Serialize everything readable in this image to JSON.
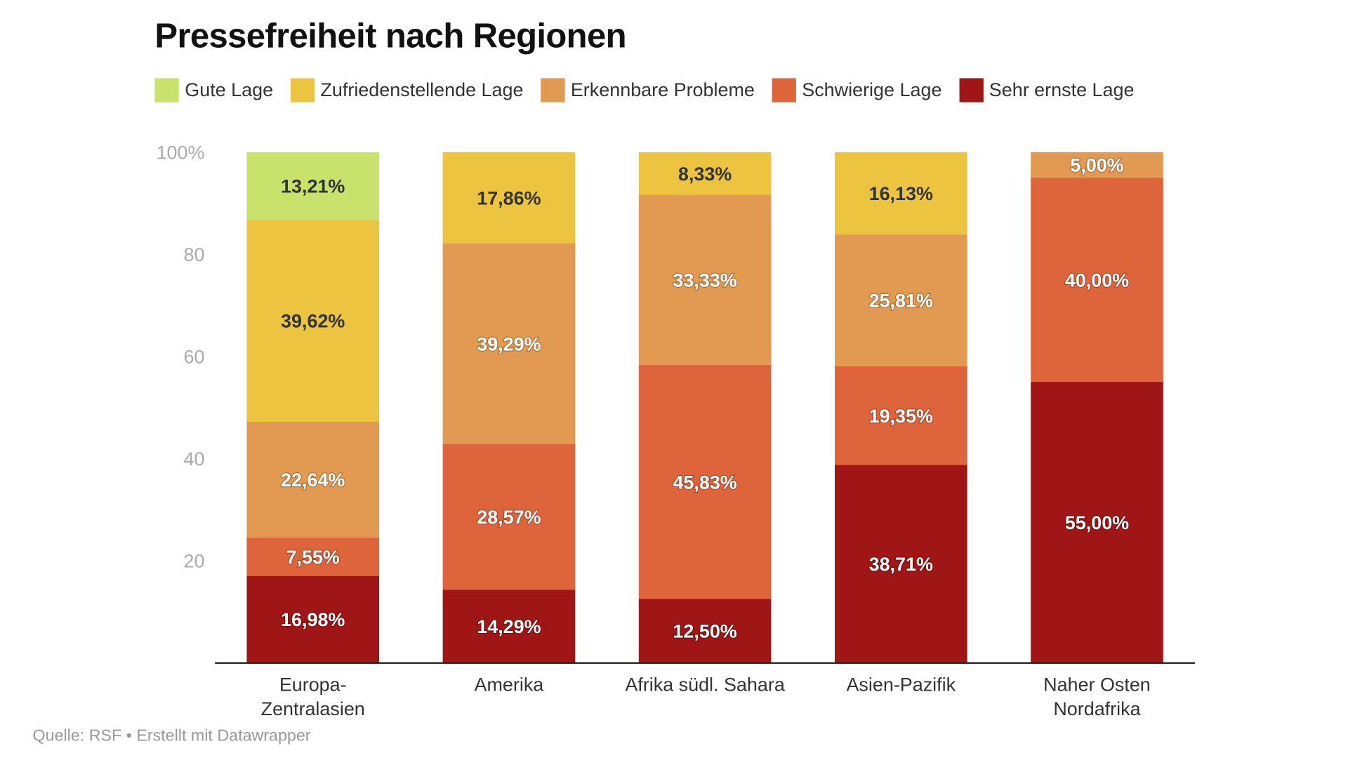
{
  "title": "Pressefreiheit nach Regionen",
  "source": "Quelle: RSF • Erstellt mit Datawrapper",
  "chart_data": {
    "type": "bar",
    "stacked": true,
    "title": "Pressefreiheit nach Regionen",
    "categories": [
      [
        "Europa-",
        "Zentralasien"
      ],
      [
        "Amerika"
      ],
      [
        "Afrika südl. Sahara"
      ],
      [
        "Asien-Pazifik"
      ],
      [
        "Naher Osten",
        "Nordafrika"
      ]
    ],
    "ylim": [
      0,
      100
    ],
    "yticks": [
      20,
      40,
      60,
      80,
      100
    ],
    "ytick_labels": [
      "20",
      "40",
      "60",
      "80",
      "100%"
    ],
    "legend_position": "top-left",
    "grid": false,
    "series": [
      {
        "name": "Gute Lage",
        "color": "#c8e26b",
        "label_color": "#333333",
        "values": [
          13.21,
          0,
          0,
          0,
          0
        ],
        "labels": [
          "13,21%",
          "",
          "",
          "",
          ""
        ]
      },
      {
        "name": "Zufriedenstellende Lage",
        "color": "#ecc43f",
        "label_color": "#333333",
        "values": [
          39.62,
          17.86,
          8.33,
          16.13,
          0
        ],
        "labels": [
          "39,62%",
          "17,86%",
          "8,33%",
          "16,13%",
          ""
        ]
      },
      {
        "name": "Erkennbare Probleme",
        "color": "#e29a52",
        "label_color": "#ffffff",
        "values": [
          22.64,
          39.29,
          33.33,
          25.81,
          5.0
        ],
        "labels": [
          "22,64%",
          "39,29%",
          "33,33%",
          "25,81%",
          "5,00%"
        ]
      },
      {
        "name": "Schwierige Lage",
        "color": "#de643b",
        "label_color": "#ffffff",
        "values": [
          7.55,
          28.57,
          45.83,
          19.35,
          40.0
        ],
        "labels": [
          "7,55%",
          "28,57%",
          "45,83%",
          "19,35%",
          "40,00%"
        ]
      },
      {
        "name": "Sehr ernste Lage",
        "color": "#a01616",
        "label_color": "#ffffff",
        "values": [
          16.98,
          14.29,
          12.5,
          38.71,
          55.0
        ],
        "labels": [
          "16,98%",
          "14,29%",
          "12,50%",
          "38,71%",
          "55,00%"
        ]
      }
    ]
  }
}
